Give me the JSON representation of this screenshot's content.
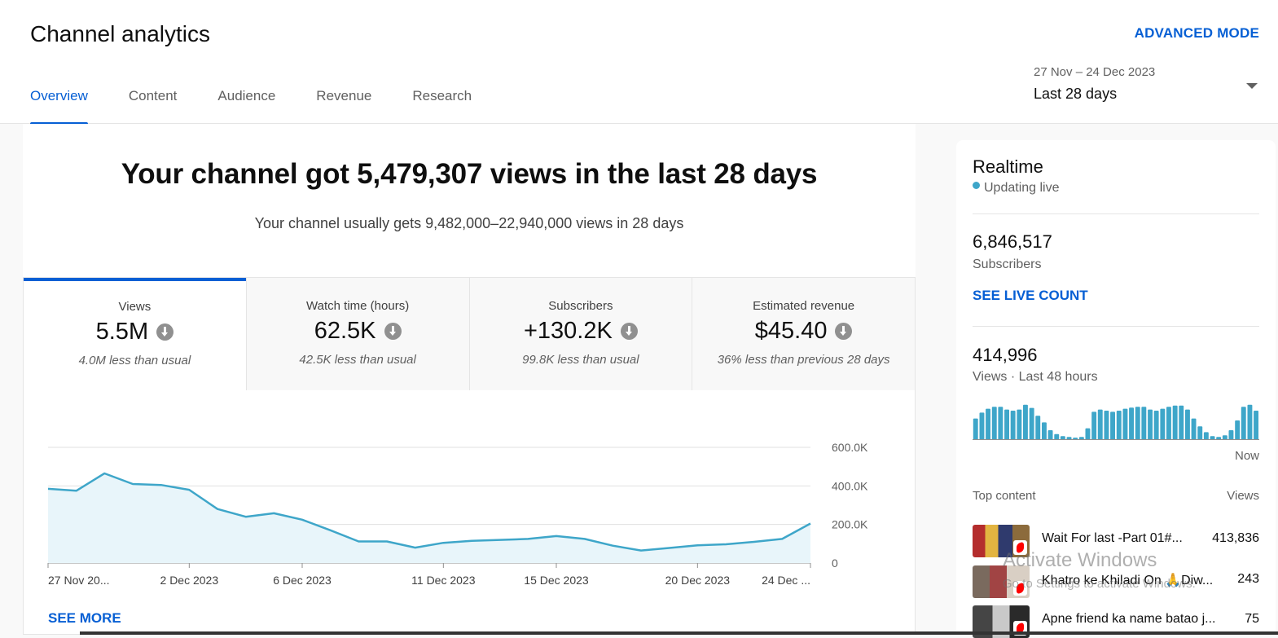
{
  "header": {
    "title": "Channel analytics",
    "advanced_mode": "ADVANCED MODE",
    "tabs": [
      {
        "label": "Overview",
        "active": true
      },
      {
        "label": "Content",
        "active": false
      },
      {
        "label": "Audience",
        "active": false
      },
      {
        "label": "Revenue",
        "active": false
      },
      {
        "label": "Research",
        "active": false
      }
    ],
    "date_range": {
      "range": "27 Nov – 24 Dec 2023",
      "label": "Last 28 days"
    }
  },
  "summary": {
    "headline": "Your channel got 5,479,307 views in the last 28 days",
    "subline": "Your channel usually gets 9,482,000–22,940,000 views in 28 days"
  },
  "metrics": [
    {
      "label": "Views",
      "value": "5.5M",
      "note": "4.0M less than usual",
      "trend_icon": "arrow-down-circle",
      "active": true
    },
    {
      "label": "Watch time (hours)",
      "value": "62.5K",
      "note": "42.5K less than usual",
      "trend_icon": "arrow-down-circle",
      "active": false
    },
    {
      "label": "Subscribers",
      "value": "+130.2K",
      "note": "99.8K less than usual",
      "trend_icon": "arrow-down-circle",
      "active": false
    },
    {
      "label": "Estimated revenue",
      "value": "$45.40",
      "note": "36% less than previous 28 days",
      "trend_icon": "arrow-down-circle",
      "active": false
    }
  ],
  "see_more": "SEE MORE",
  "chart_data": {
    "type": "area",
    "series": [
      {
        "values": [
          385000,
          375000,
          465000,
          410000,
          405000,
          380000,
          280000,
          240000,
          258000,
          225000,
          170000,
          112000,
          112000,
          80000,
          105000,
          115000,
          120000,
          125000,
          140000,
          125000,
          90000,
          65000,
          78000,
          92000,
          97000,
          110000,
          125000,
          205000
        ]
      }
    ],
    "x_tick_labels": [
      "27 Nov 20...",
      "2 Dec 2023",
      "6 Dec 2023",
      "11 Dec 2023",
      "15 Dec 2023",
      "20 Dec 2023",
      "24 Dec ..."
    ],
    "x_tick_index": [
      0,
      5,
      9,
      14,
      18,
      23,
      27
    ],
    "y_tick_labels": [
      "0",
      "200.0K",
      "400.0K",
      "600.0K"
    ],
    "y_ticks": [
      0,
      200000,
      400000,
      600000
    ],
    "ylim": [
      0,
      600000
    ],
    "grid": true,
    "colors": {
      "line": "#3ea6c9",
      "fill": "#e8f5fa"
    }
  },
  "realtime": {
    "title": "Realtime",
    "status": "Updating live",
    "subscribers_value": "6,846,517",
    "subscribers_label": "Subscribers",
    "see_live_count": "SEE LIVE COUNT",
    "views_value": "414,996",
    "views_label": "Views · Last 48 hours",
    "bars": [
      0.55,
      0.7,
      0.8,
      0.85,
      0.85,
      0.78,
      0.75,
      0.78,
      0.9,
      0.82,
      0.62,
      0.45,
      0.25,
      0.15,
      0.1,
      0.08,
      0.06,
      0.08,
      0.3,
      0.72,
      0.78,
      0.75,
      0.72,
      0.75,
      0.8,
      0.83,
      0.85,
      0.85,
      0.78,
      0.75,
      0.8,
      0.85,
      0.88,
      0.88,
      0.78,
      0.55,
      0.35,
      0.2,
      0.1,
      0.08,
      0.12,
      0.25,
      0.5,
      0.85,
      0.9,
      0.75
    ],
    "now_label": "Now",
    "top_content_label": "Top content",
    "views_col_label": "Views",
    "top_content": [
      {
        "title": "Wait For last -Part 01#...",
        "views": "413,836"
      },
      {
        "title": "Khatro ke Khiladi On 🙏Diw...",
        "views": "243"
      },
      {
        "title": "Apne friend ka name batao j...",
        "views": "75"
      }
    ]
  },
  "watermark": {
    "line1": "Activate Windows",
    "line2": "Go to Settings to activate Windows."
  },
  "colors": {
    "accent": "#065fd4",
    "chart_line": "#3ea6c9"
  }
}
